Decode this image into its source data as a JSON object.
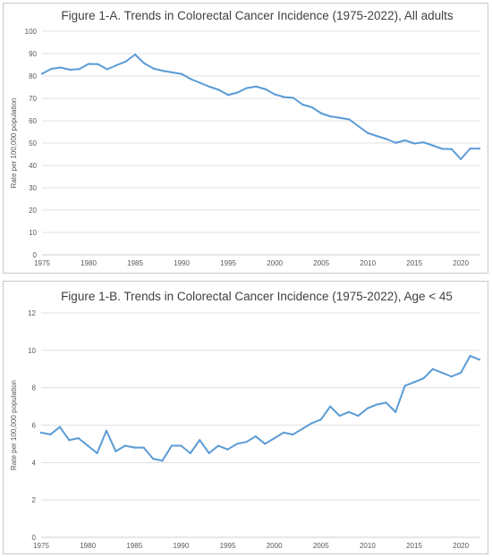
{
  "colors": {
    "series": "#5b9bd5"
  },
  "chart_data": [
    {
      "type": "line",
      "title": "Figure 1-A. Trends in Colorectal Cancer Incidence (1975-2022), All adults",
      "xlabel": "",
      "ylabel": "Rate per 100,000 population",
      "xlim": [
        1975,
        2022
      ],
      "ylim": [
        0,
        100
      ],
      "yticks": [
        0,
        10,
        20,
        30,
        40,
        50,
        60,
        70,
        80,
        90,
        100
      ],
      "xticks": [
        1975,
        1980,
        1985,
        1990,
        1995,
        2000,
        2005,
        2010,
        2015,
        2020
      ],
      "grid": true,
      "legend": "none",
      "x": [
        1975,
        1976,
        1977,
        1978,
        1979,
        1980,
        1981,
        1982,
        1983,
        1984,
        1985,
        1986,
        1987,
        1988,
        1989,
        1990,
        1991,
        1992,
        1993,
        1994,
        1995,
        1996,
        1997,
        1998,
        1999,
        2000,
        2001,
        2002,
        2003,
        2004,
        2005,
        2006,
        2007,
        2008,
        2009,
        2010,
        2011,
        2012,
        2013,
        2014,
        2015,
        2016,
        2017,
        2018,
        2019,
        2020,
        2021,
        2022
      ],
      "series": [
        {
          "values": [
            81.0,
            83.2,
            83.8,
            82.8,
            83.1,
            85.4,
            85.3,
            83.0,
            84.8,
            86.5,
            89.6,
            85.6,
            83.3,
            82.3,
            81.6,
            80.9,
            78.6,
            76.9,
            75.2,
            73.8,
            71.5,
            72.6,
            74.6,
            75.3,
            74.1,
            71.8,
            70.6,
            70.2,
            67.2,
            66.0,
            63.3,
            61.9,
            61.3,
            60.6,
            57.5,
            54.5,
            53.1,
            51.8,
            50.1,
            51.2,
            49.8,
            50.3,
            48.9,
            47.4,
            47.3,
            42.8,
            47.5,
            47.5
          ]
        }
      ]
    },
    {
      "type": "line",
      "title": "Figure 1-B. Trends in Colorectal Cancer Incidence (1975-2022), Age < 45",
      "xlabel": "",
      "ylabel": "Rate per 100,000 population",
      "xlim": [
        1975,
        2022
      ],
      "ylim": [
        0,
        12
      ],
      "yticks": [
        0,
        2,
        4,
        6,
        8,
        10,
        12
      ],
      "xticks": [
        1975,
        1980,
        1985,
        1990,
        1995,
        2000,
        2005,
        2010,
        2015,
        2020
      ],
      "grid": true,
      "legend": "none",
      "x": [
        1975,
        1976,
        1977,
        1978,
        1979,
        1980,
        1981,
        1982,
        1983,
        1984,
        1985,
        1986,
        1987,
        1988,
        1989,
        1990,
        1991,
        1992,
        1993,
        1994,
        1995,
        1996,
        1997,
        1998,
        1999,
        2000,
        2001,
        2002,
        2003,
        2004,
        2005,
        2006,
        2007,
        2008,
        2009,
        2010,
        2011,
        2012,
        2013,
        2014,
        2015,
        2016,
        2017,
        2018,
        2019,
        2020,
        2021,
        2022
      ],
      "series": [
        {
          "values": [
            5.6,
            5.5,
            5.9,
            5.2,
            5.3,
            4.9,
            4.5,
            5.7,
            4.6,
            4.9,
            4.8,
            4.8,
            4.2,
            4.1,
            4.9,
            4.9,
            4.5,
            5.2,
            4.5,
            4.9,
            4.7,
            5.0,
            5.1,
            5.4,
            5.0,
            5.3,
            5.6,
            5.5,
            5.8,
            6.1,
            6.3,
            7.0,
            6.5,
            6.7,
            6.5,
            6.9,
            7.1,
            7.2,
            6.7,
            8.1,
            8.3,
            8.5,
            9.0,
            8.8,
            8.6,
            8.8,
            9.7,
            9.5
          ]
        }
      ]
    }
  ]
}
